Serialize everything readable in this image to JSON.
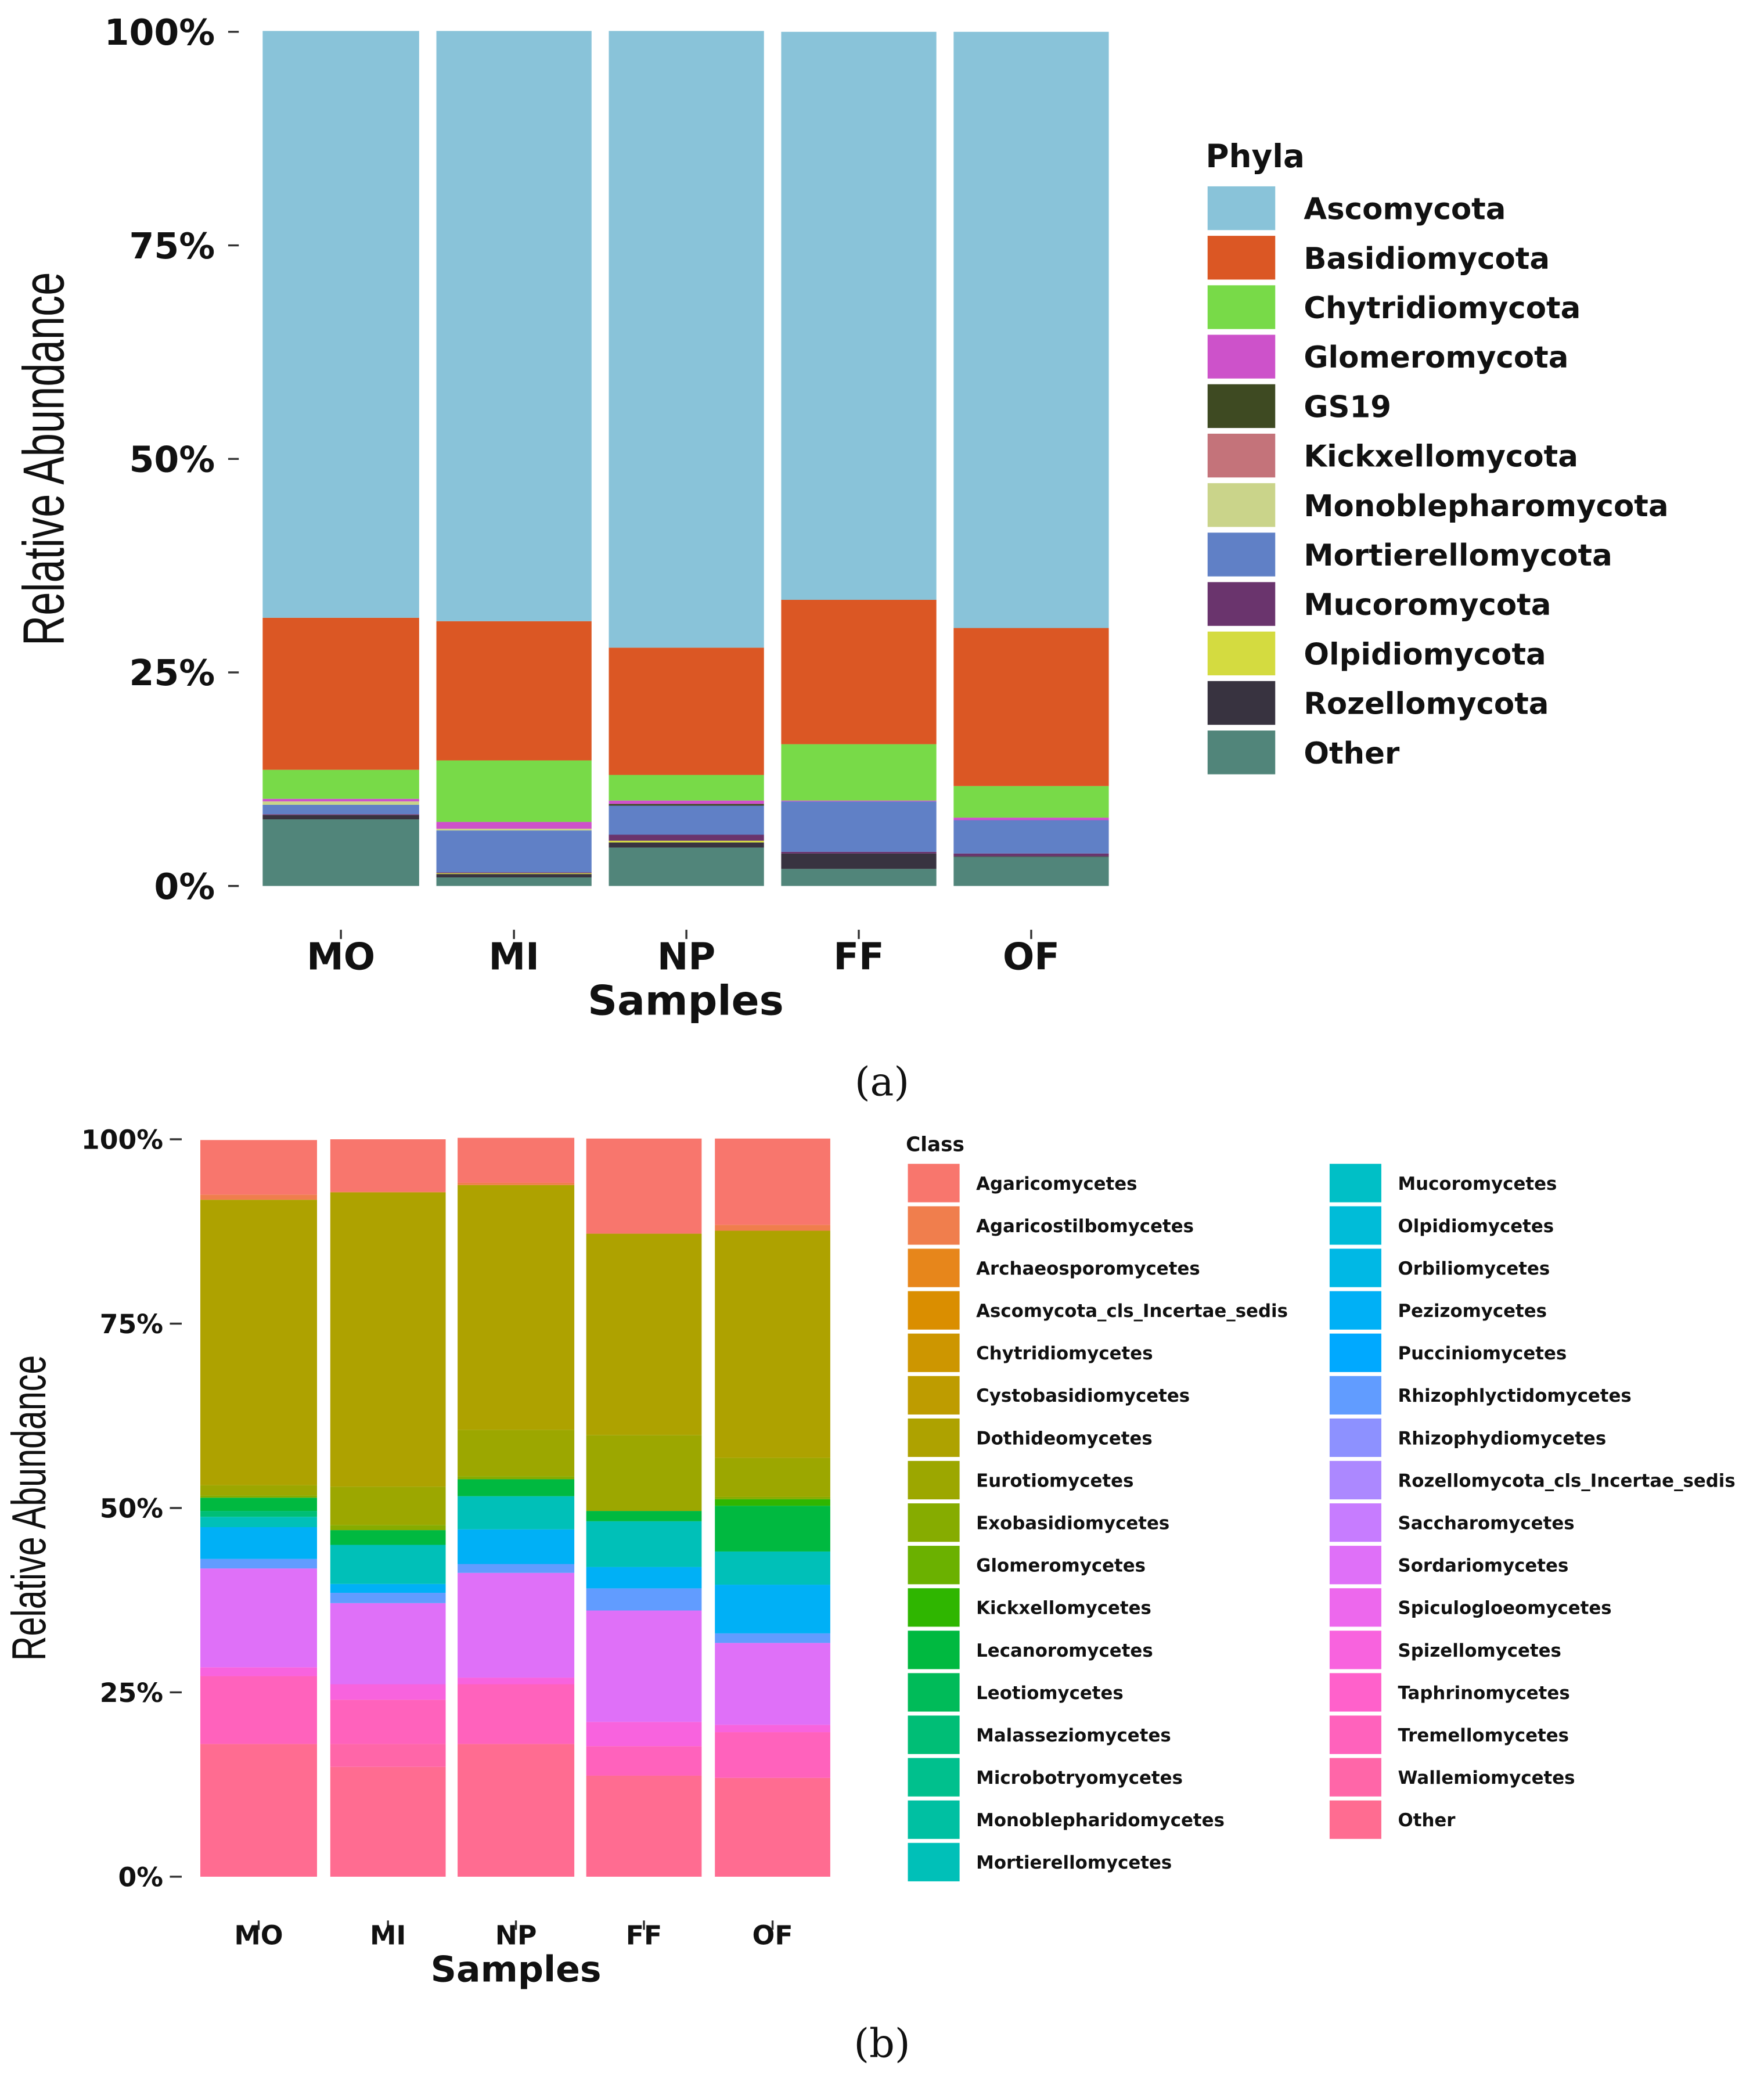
{
  "captions": {
    "a": "(a)",
    "b": "(b)"
  },
  "chart_data": [
    {
      "type": "bar",
      "stacked": true,
      "title": "",
      "xlabel": "Samples",
      "ylabel": "Relative Abundance",
      "ylim": [
        0,
        100
      ],
      "yticks": [
        "0%",
        "25%",
        "50%",
        "75%",
        "100%"
      ],
      "legend_title": "Phyla",
      "legend_position": "right",
      "categories": [
        "MO",
        "MI",
        "NP",
        "FF",
        "OF"
      ],
      "series": [
        {
          "name": "Ascomycota",
          "color": "#89C3D9",
          "values": [
            68.7,
            69.1,
            72.2,
            66.5,
            69.8
          ]
        },
        {
          "name": "Basidiomycota",
          "color": "#DB5724",
          "values": [
            17.8,
            16.3,
            14.9,
            16.9,
            18.5
          ]
        },
        {
          "name": "Chytridiomycota",
          "color": "#78DA48",
          "values": [
            3.4,
            7.2,
            3.0,
            6.6,
            3.7
          ]
        },
        {
          "name": "Glomeromycota",
          "color": "#CD52CA",
          "values": [
            0.3,
            0.8,
            0.4,
            0.1,
            0.3
          ]
        },
        {
          "name": "GS19",
          "color": "#3E4A22",
          "values": [
            0,
            0,
            0.2,
            0,
            0
          ]
        },
        {
          "name": "Kickxellomycota",
          "color": "#C4737A",
          "values": [
            0,
            0,
            0,
            0,
            0
          ]
        },
        {
          "name": "Monoblepharomycota",
          "color": "#CAD48A",
          "values": [
            0.4,
            0.2,
            0,
            0,
            0
          ]
        },
        {
          "name": "Mortierellomycota",
          "color": "#6080C6",
          "values": [
            1.1,
            4.9,
            3.4,
            5.9,
            3.9
          ]
        },
        {
          "name": "Mucoromycota",
          "color": "#6A346D",
          "values": [
            0.1,
            0.1,
            0.7,
            0.2,
            0.3
          ]
        },
        {
          "name": "Olpidiomycota",
          "color": "#D4DB40",
          "values": [
            0,
            0.1,
            0.2,
            0,
            0
          ]
        },
        {
          "name": "Rozellomycota",
          "color": "#383340",
          "values": [
            0.5,
            0.4,
            0.6,
            1.8,
            0.1
          ]
        },
        {
          "name": "Other",
          "color": "#51857A",
          "values": [
            7.8,
            1.0,
            4.5,
            2.0,
            3.4
          ]
        }
      ]
    },
    {
      "type": "bar",
      "stacked": true,
      "title": "",
      "xlabel": "Samples",
      "ylabel": "Relative Abundance",
      "ylim": [
        0,
        100
      ],
      "yticks": [
        "0%",
        "25%",
        "50%",
        "75%",
        "100%"
      ],
      "legend_title": "Class",
      "legend_position": "right",
      "categories": [
        "MO",
        "MI",
        "NP",
        "FF",
        "OF"
      ],
      "series": [
        {
          "name": "Agaricomycetes",
          "color": "#F8766D",
          "values": [
            7.4,
            7.1,
            6.1,
            12.9,
            11.7
          ]
        },
        {
          "name": "Agaricostilbomycetes",
          "color": "#F07E4D",
          "values": [
            0.7,
            0.1,
            0.3,
            0,
            0.8
          ]
        },
        {
          "name": "Archaeosporomycetes",
          "color": "#E7861B",
          "values": [
            0,
            0,
            0,
            0,
            0
          ]
        },
        {
          "name": "Ascomycota_cls_Incertae_sedis",
          "color": "#DA8E00",
          "values": [
            0,
            0,
            0,
            0,
            0
          ]
        },
        {
          "name": "Chytridiomycetes",
          "color": "#CD9600",
          "values": [
            0,
            0,
            0,
            0,
            0
          ]
        },
        {
          "name": "Cystobasidiomycetes",
          "color": "#BE9C00",
          "values": [
            0,
            0,
            0,
            0,
            0
          ]
        },
        {
          "name": "Dothideomycetes",
          "color": "#AEA200",
          "values": [
            38.7,
            39.9,
            33.2,
            27.3,
            30.8
          ]
        },
        {
          "name": "Eurotiomycetes",
          "color": "#9CA700",
          "values": [
            1.4,
            5.2,
            6.3,
            10.3,
            5.3
          ]
        },
        {
          "name": "Exobasidiomycetes",
          "color": "#86AC00",
          "values": [
            0.3,
            0.7,
            0.4,
            0,
            0.3
          ]
        },
        {
          "name": "Glomeromycetes",
          "color": "#6BB100",
          "values": [
            0,
            0,
            0,
            0,
            0
          ]
        },
        {
          "name": "Kickxellomycetes",
          "color": "#2FB600",
          "values": [
            0,
            0,
            0,
            0,
            0.9
          ]
        },
        {
          "name": "Lecanoromycetes",
          "color": "#00B940",
          "values": [
            1.8,
            2.0,
            2.3,
            1.4,
            6.2
          ]
        },
        {
          "name": "Leotiomycetes",
          "color": "#00BB59",
          "values": [
            0,
            0,
            0,
            0,
            0
          ]
        },
        {
          "name": "Malasseziomycetes",
          "color": "#00BE76",
          "values": [
            0.8,
            0,
            0,
            0,
            0
          ]
        },
        {
          "name": "Microbotryomycetes",
          "color": "#00C08D",
          "values": [
            0,
            0,
            0,
            0,
            0
          ]
        },
        {
          "name": "Monoblepharidomycetes",
          "color": "#00C0A2",
          "values": [
            0,
            0,
            0,
            0,
            0
          ]
        },
        {
          "name": "Mortierellomycetes",
          "color": "#00C0B8",
          "values": [
            1.4,
            5.3,
            4.5,
            6.2,
            4.5
          ]
        },
        {
          "name": "Mucoromycetes",
          "color": "#00BFC6",
          "values": [
            0,
            0,
            0,
            0,
            0
          ]
        },
        {
          "name": "Olpidiomycetes",
          "color": "#00BCD8",
          "values": [
            0,
            0,
            0,
            0,
            0
          ]
        },
        {
          "name": "Orbiliomycetes",
          "color": "#00B8E5",
          "values": [
            0,
            0,
            0,
            0,
            0
          ]
        },
        {
          "name": "Pezizomycetes",
          "color": "#00B0F6",
          "values": [
            4.3,
            1.2,
            4.7,
            2.9,
            6.6
          ]
        },
        {
          "name": "Pucciniomycetes",
          "color": "#00A9FF",
          "values": [
            0,
            0,
            0,
            0,
            0
          ]
        },
        {
          "name": "Rhizophlyctidomycetes",
          "color": "#619CFF",
          "values": [
            1.3,
            1.4,
            1.2,
            3.0,
            1.3
          ]
        },
        {
          "name": "Rhizophydiomycetes",
          "color": "#8D91FF",
          "values": [
            0,
            0,
            0,
            0,
            0
          ]
        },
        {
          "name": "Rozellomycota_cls_Incertae_sedis",
          "color": "#AC88FF",
          "values": [
            0,
            0,
            0,
            0,
            0
          ]
        },
        {
          "name": "Saccharomycetes",
          "color": "#C77CFF",
          "values": [
            0,
            0,
            0,
            0,
            0
          ]
        },
        {
          "name": "Sordariomycetes",
          "color": "#DF70F8",
          "values": [
            13.4,
            11.0,
            14.2,
            15.1,
            11.1
          ]
        },
        {
          "name": "Spiculogloeomycetes",
          "color": "#ED68ED",
          "values": [
            0,
            0,
            0,
            0,
            0
          ]
        },
        {
          "name": "Spizellomycetes",
          "color": "#F863DE",
          "values": [
            1.2,
            2.1,
            0.9,
            3.3,
            1.0
          ]
        },
        {
          "name": "Taphrinomycetes",
          "color": "#FF61CB",
          "values": [
            0,
            0,
            0,
            0,
            0
          ]
        },
        {
          "name": "Tremellomycetes",
          "color": "#FF62BC",
          "values": [
            9.2,
            6.0,
            8.1,
            4.0,
            6.2
          ]
        },
        {
          "name": "Wallemiomycetes",
          "color": "#FF66A8",
          "values": [
            0,
            3.1,
            0,
            0,
            0
          ]
        },
        {
          "name": "Other",
          "color": "#FF6C91",
          "values": [
            18.0,
            14.9,
            18.0,
            13.7,
            13.4
          ]
        }
      ]
    }
  ]
}
